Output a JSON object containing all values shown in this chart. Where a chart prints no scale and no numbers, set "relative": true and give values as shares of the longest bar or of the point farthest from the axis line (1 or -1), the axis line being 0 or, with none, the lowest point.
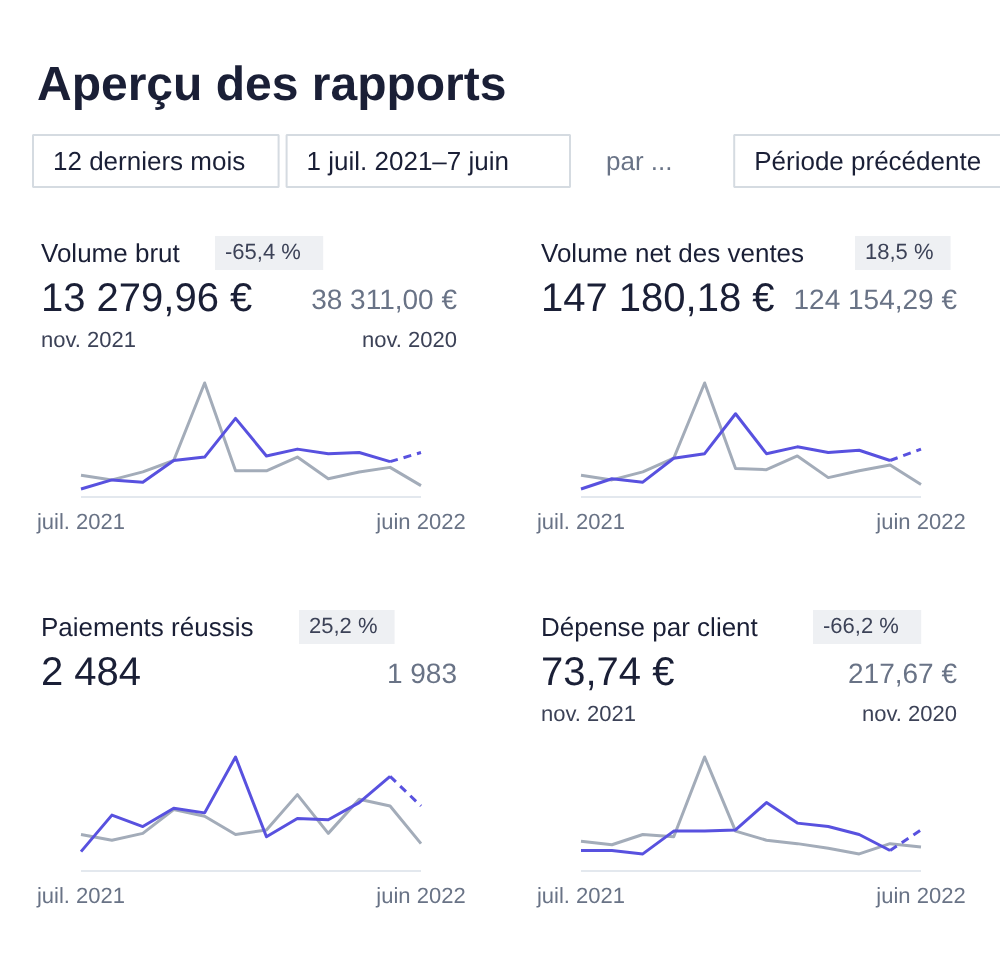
{
  "chart_data": [
    {
      "type": "other",
      "title": "Aperçu des rapports",
      "annotations": [
        "12 derniers mois",
        "1 juil. 2021–7 juin",
        "par ...",
        "Période précédente"
      ]
    },
    {
      "type": "line",
      "title": "Volume brut",
      "relative": true,
      "annotations": [
        "-65,4 %",
        "13 279,96 €",
        "38 311,00 €",
        "nov. 2021",
        "nov. 2020"
      ],
      "categories": [
        "juil. 2021",
        null,
        null,
        null,
        null,
        null,
        null,
        null,
        null,
        null,
        null,
        "juin 2022"
      ],
      "series": [
        {
          "color": "#a3acb9",
          "values": [
            0.19,
            0.15,
            0.22,
            0.32,
            1,
            0.23,
            0.23,
            0.35,
            0.16,
            0.22,
            0.26,
            0.1
          ]
        },
        {
          "color": "#5851df",
          "values": [
            0.07,
            0.15,
            0.13,
            0.32,
            0.35,
            0.69,
            0.36,
            0.42,
            0.38,
            0.39,
            0.31,
            null
          ]
        },
        {
          "color": "#5851df",
          "line_style": "dashed",
          "values": [
            null,
            null,
            null,
            null,
            null,
            null,
            null,
            null,
            null,
            null,
            0.31,
            0.39
          ]
        }
      ]
    },
    {
      "type": "line",
      "title": "Volume net des ventes",
      "relative": true,
      "annotations": [
        "18,5 %",
        "147 180,18 €",
        "124 154,29 €"
      ],
      "categories": [
        "juil. 2021",
        null,
        null,
        null,
        null,
        null,
        null,
        null,
        null,
        null,
        null,
        "juin 2022"
      ],
      "series": [
        {
          "color": "#a3acb9",
          "values": [
            0.19,
            0.15,
            0.22,
            0.34,
            1,
            0.25,
            0.24,
            0.36,
            0.17,
            0.23,
            0.28,
            0.11
          ]
        },
        {
          "color": "#5851df",
          "values": [
            0.07,
            0.16,
            0.13,
            0.34,
            0.38,
            0.73,
            0.38,
            0.44,
            0.39,
            0.41,
            0.32,
            null
          ]
        },
        {
          "color": "#5851df",
          "line_style": "dashed",
          "values": [
            null,
            null,
            null,
            null,
            null,
            null,
            null,
            null,
            null,
            null,
            0.32,
            0.42
          ]
        }
      ]
    },
    {
      "type": "line",
      "title": "Paiements réussis",
      "relative": true,
      "annotations": [
        "25,2 %",
        "2 484",
        "1 983"
      ],
      "categories": [
        "juil. 2021",
        null,
        null,
        null,
        null,
        null,
        null,
        null,
        null,
        null,
        null,
        "juin 2022"
      ],
      "series": [
        {
          "color": "#a3acb9",
          "values": [
            0.32,
            0.27,
            0.33,
            0.54,
            0.48,
            0.32,
            0.36,
            0.67,
            0.33,
            0.63,
            0.57,
            0.24
          ]
        },
        {
          "color": "#5851df",
          "values": [
            0.17,
            0.49,
            0.39,
            0.55,
            0.51,
            1,
            0.3,
            0.46,
            0.45,
            0.6,
            0.83,
            null
          ]
        },
        {
          "color": "#5851df",
          "line_style": "dashed",
          "values": [
            null,
            null,
            null,
            null,
            null,
            null,
            null,
            null,
            null,
            null,
            0.83,
            0.57
          ]
        }
      ]
    },
    {
      "type": "line",
      "title": "Dépense par client",
      "relative": true,
      "annotations": [
        "-66,2 %",
        "73,74 €",
        "217,67 €",
        "nov. 2021",
        "nov. 2020"
      ],
      "categories": [
        "juil. 2021",
        null,
        null,
        null,
        null,
        null,
        null,
        null,
        null,
        null,
        null,
        "juin 2022"
      ],
      "series": [
        {
          "color": "#a3acb9",
          "values": [
            0.26,
            0.23,
            0.32,
            0.3,
            1,
            0.35,
            0.27,
            0.24,
            0.2,
            0.15,
            0.24,
            0.21
          ]
        },
        {
          "color": "#5851df",
          "values": [
            0.18,
            0.18,
            0.15,
            0.35,
            0.35,
            0.36,
            0.6,
            0.42,
            0.39,
            0.32,
            0.18,
            null
          ]
        },
        {
          "color": "#5851df",
          "line_style": "dashed",
          "values": [
            null,
            null,
            null,
            null,
            null,
            null,
            null,
            null,
            null,
            null,
            0.18,
            0.36
          ]
        }
      ]
    }
  ]
}
